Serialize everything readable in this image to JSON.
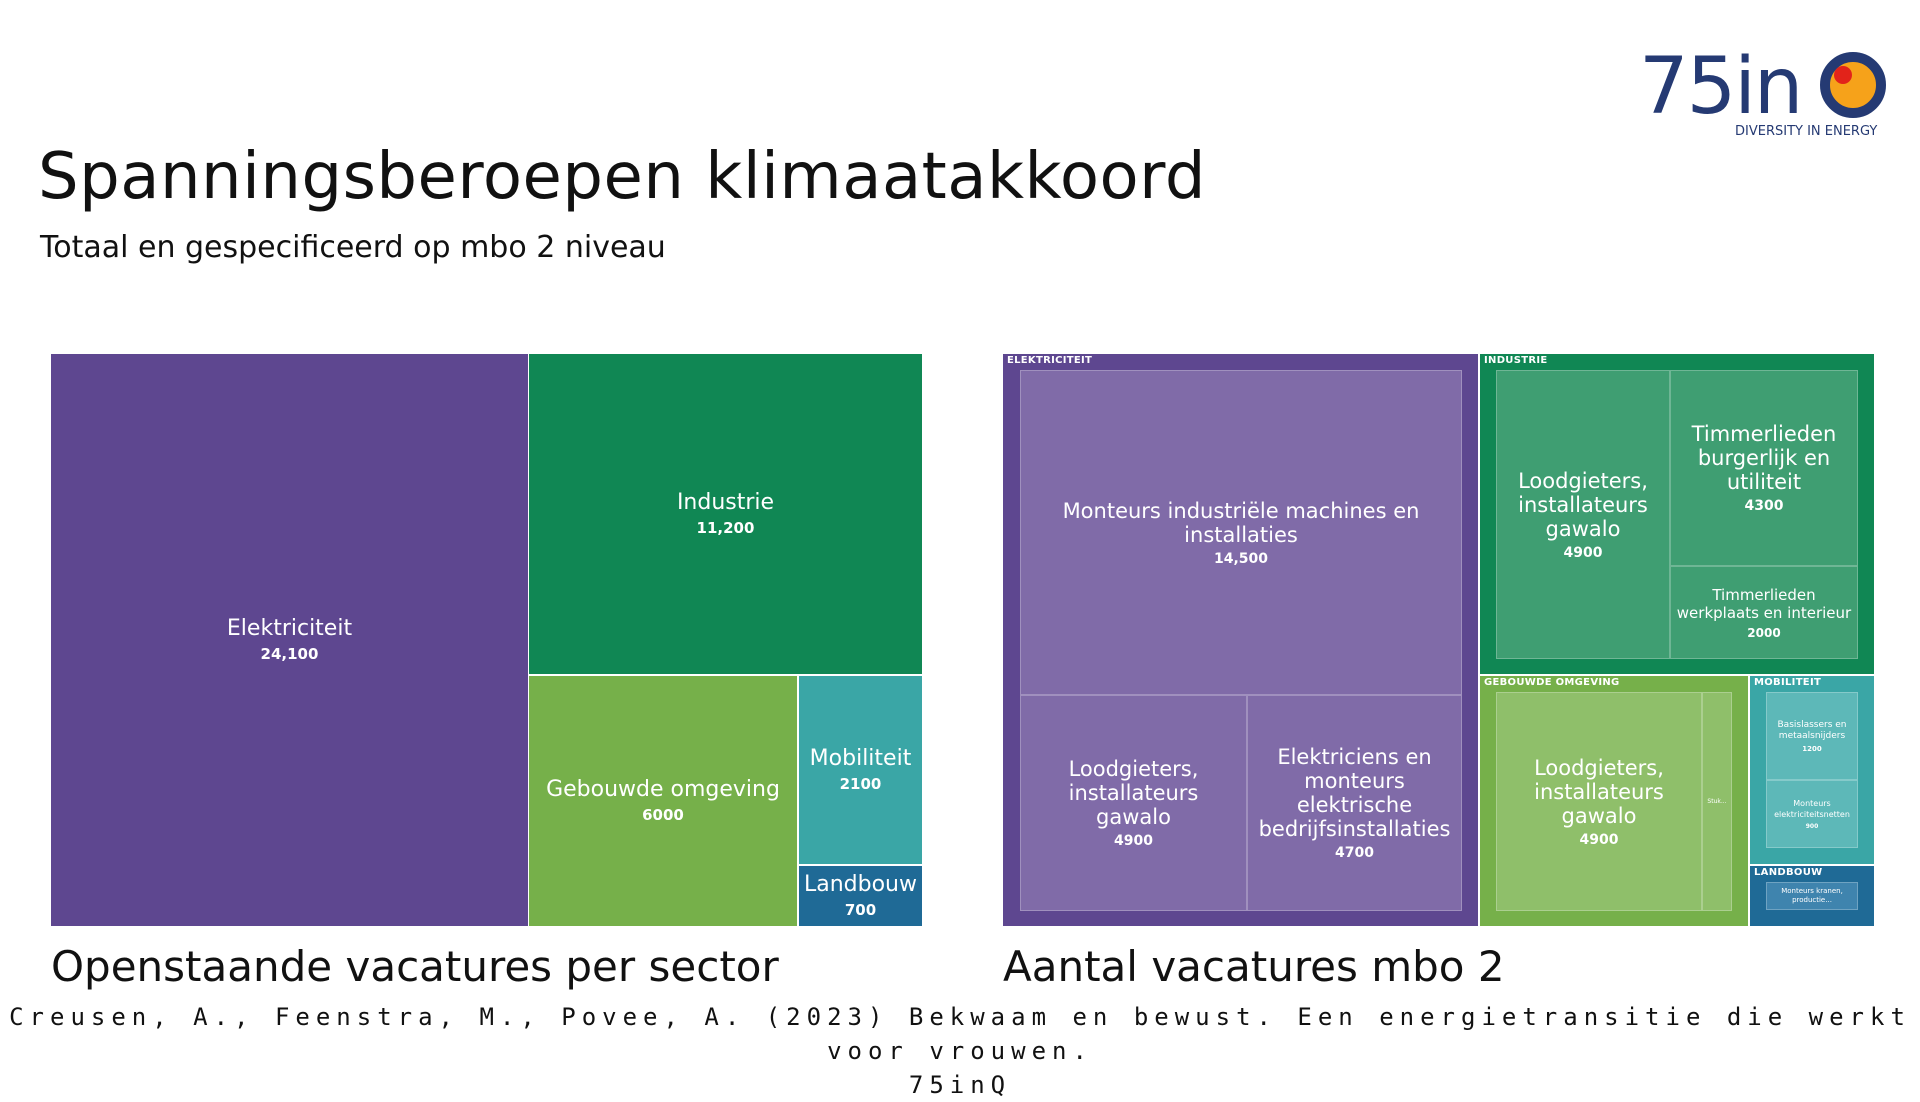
{
  "title": "Spanningsberoepen klimaatakkoord",
  "subtitle": "Totaal en gespecificeerd op mbo 2 niveau",
  "logo": {
    "text": "75inQ",
    "tagline": "DIVERSITY IN ENERGY"
  },
  "colors": {
    "elektriciteit": "#5e4790",
    "industrie": "#108754",
    "gebouwde": "#76b04a",
    "mobiliteit": "#3aa6a6",
    "landbouw": "#1f6a96"
  },
  "chart_data": [
    {
      "type": "treemap",
      "caption": "Openstaande vacatures per sector",
      "items": [
        {
          "name": "Elektriciteit",
          "value": 24100,
          "label": "24,100"
        },
        {
          "name": "Industrie",
          "value": 11200,
          "label": "11,200"
        },
        {
          "name": "Gebouwde omgeving",
          "value": 6000,
          "label": "6000"
        },
        {
          "name": "Mobiliteit",
          "value": 2100,
          "label": "2100"
        },
        {
          "name": "Landbouw",
          "value": 700,
          "label": "700"
        }
      ]
    },
    {
      "type": "treemap",
      "caption": "Aantal vacatures mbo 2",
      "groups": [
        {
          "name": "ELEKTRICITEIT",
          "children": [
            {
              "name": "Monteurs industriële machines en installaties",
              "value": 14500,
              "label": "14,500"
            },
            {
              "name": "Loodgieters, installateurs gawalo",
              "value": 4900,
              "label": "4900"
            },
            {
              "name": "Elektriciens en monteurs elektrische bedrijfsinstallaties",
              "value": 4700,
              "label": "4700"
            }
          ]
        },
        {
          "name": "INDUSTRIE",
          "children": [
            {
              "name": "Loodgieters, installateurs gawalo",
              "value": 4900,
              "label": "4900"
            },
            {
              "name": "Timmerlieden burgerlijk en utiliteit",
              "value": 4300,
              "label": "4300"
            },
            {
              "name": "Timmerlieden werkplaats en interieur",
              "value": 2000,
              "label": "2000"
            }
          ]
        },
        {
          "name": "GEBOUWDE OMGEVING",
          "children": [
            {
              "name": "Loodgieters, installateurs gawalo",
              "value": 4900,
              "label": "4900"
            },
            {
              "name": "Stuk...",
              "label": ""
            }
          ]
        },
        {
          "name": "MOBILITEIT",
          "children": [
            {
              "name": "Basislassers en metaalsnijders",
              "value": 1200,
              "label": "1200"
            },
            {
              "name": "Monteurs elektriciteitsnetten",
              "value": 900,
              "label": "900"
            }
          ]
        },
        {
          "name": "LANDBOUW",
          "children": [
            {
              "name": "Monteurs kranen, productie...",
              "label": ""
            }
          ]
        }
      ]
    }
  ],
  "citation_line1": "Creusen, A., Feenstra, M., Povee, A. (2023) Bekwaam en bewust. Een energietransitie die werkt voor vrouwen.",
  "citation_line2": "75inQ"
}
